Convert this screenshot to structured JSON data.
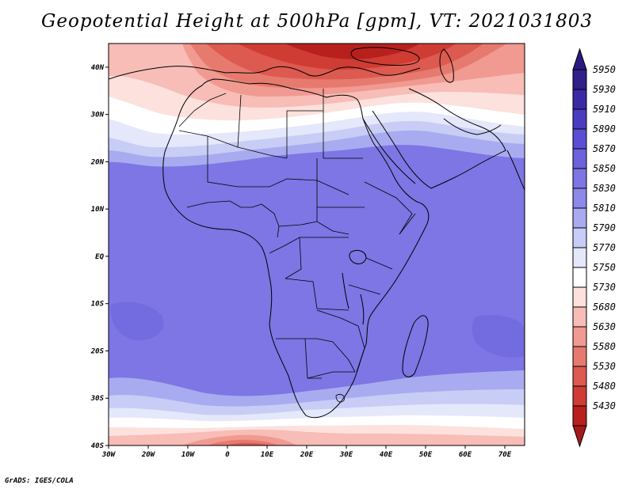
{
  "title": "Geopotential Height at 500hPa [gpm], VT: 2021031803",
  "credit": "GrADS: IGES/COLA",
  "map": {
    "lon_range": [
      -30,
      75
    ],
    "lat_range": [
      -40,
      45
    ],
    "lat_ticks": [
      {
        "value": 40,
        "label": "40N"
      },
      {
        "value": 30,
        "label": "30N"
      },
      {
        "value": 20,
        "label": "20N"
      },
      {
        "value": 10,
        "label": "10N"
      },
      {
        "value": 0,
        "label": "EQ"
      },
      {
        "value": -10,
        "label": "10S"
      },
      {
        "value": -20,
        "label": "20S"
      },
      {
        "value": -30,
        "label": "30S"
      },
      {
        "value": -40,
        "label": "40S"
      }
    ],
    "lon_ticks": [
      {
        "value": -30,
        "label": "30W"
      },
      {
        "value": -20,
        "label": "20W"
      },
      {
        "value": -10,
        "label": "10W"
      },
      {
        "value": 0,
        "label": "0"
      },
      {
        "value": 10,
        "label": "10E"
      },
      {
        "value": 20,
        "label": "20E"
      },
      {
        "value": 30,
        "label": "30E"
      },
      {
        "value": 40,
        "label": "40E"
      },
      {
        "value": 50,
        "label": "50E"
      },
      {
        "value": 60,
        "label": "60E"
      },
      {
        "value": 70,
        "label": "70E"
      }
    ]
  },
  "colorbar": {
    "levels": [
      {
        "label": "5950",
        "color": "#302088"
      },
      {
        "label": "5930",
        "color": "#3a2aa5"
      },
      {
        "label": "5910",
        "color": "#4a3cc0"
      },
      {
        "label": "5890",
        "color": "#5a4ed4"
      },
      {
        "label": "5870",
        "color": "#6c62dd"
      },
      {
        "label": "5850",
        "color": "#7d76e4"
      },
      {
        "label": "5830",
        "color": "#8d89ea"
      },
      {
        "label": "5810",
        "color": "#a9abf0"
      },
      {
        "label": "5790",
        "color": "#c8cdf6"
      },
      {
        "label": "5770",
        "color": "#e5e8fb"
      },
      {
        "label": "5750",
        "color": "#ffffff"
      },
      {
        "label": "5730",
        "color": "#fce1dd"
      },
      {
        "label": "5680",
        "color": "#f7bdb6"
      },
      {
        "label": "5630",
        "color": "#f09a91"
      },
      {
        "label": "5580",
        "color": "#e77a6f"
      },
      {
        "label": "5530",
        "color": "#dc5a50"
      },
      {
        "label": "5480",
        "color": "#cf3c34"
      },
      {
        "label": "5430",
        "color": "#b8201d"
      }
    ],
    "top_arrow_color": "#2a1a80",
    "bottom_arrow_color": "#a51a18"
  }
}
